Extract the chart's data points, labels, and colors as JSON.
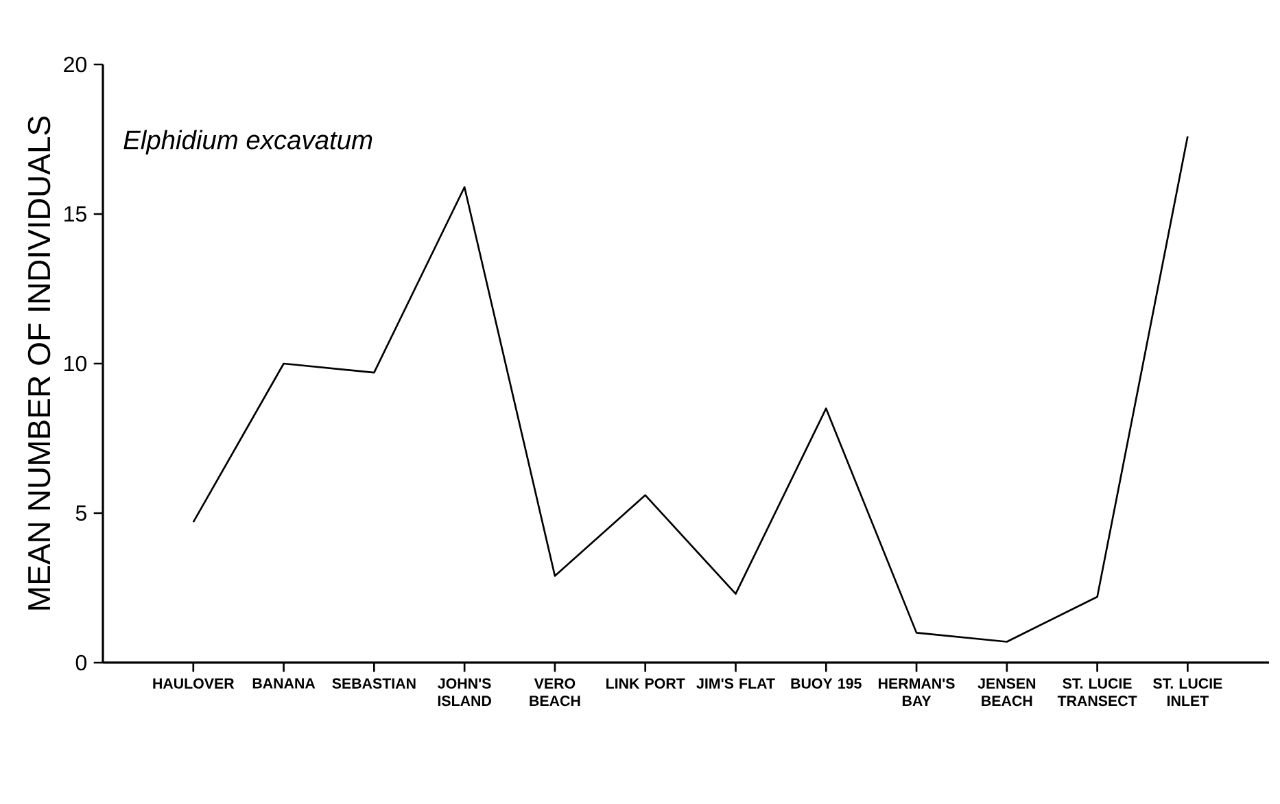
{
  "chart_data": {
    "type": "line",
    "title": "Elphidium excavatum",
    "ylabel": "MEAN NUMBER OF INDIVIDUALS",
    "categories": [
      "HAULOVER",
      "BANANA",
      "SEBASTIAN",
      "JOHN'S ISLAND",
      "VERO BEACH",
      "LINK PORT",
      "JIM'S FLAT",
      "BUOY 195",
      "HERMAN'S BAY",
      "JENSEN BEACH",
      "ST. LUCIE TRANSECT",
      "ST. LUCIE INLET"
    ],
    "values": [
      4.7,
      10.0,
      9.7,
      15.9,
      2.9,
      5.6,
      2.3,
      8.5,
      1.0,
      0.7,
      2.2,
      17.6
    ],
    "color": "#000000",
    "ylim": [
      0,
      20
    ],
    "yticks": [
      0,
      5,
      10,
      15,
      20
    ]
  }
}
